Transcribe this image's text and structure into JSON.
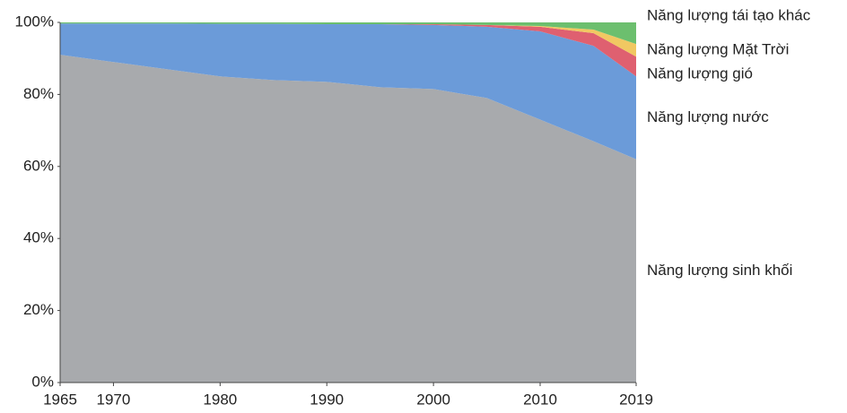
{
  "chart_data": {
    "type": "stacked_area",
    "x": [
      1965,
      1970,
      1975,
      1980,
      1985,
      1990,
      1995,
      2000,
      2005,
      2010,
      2015,
      2019
    ],
    "series": [
      {
        "name": "Năng lượng sinh khối",
        "color": "#a8aaad",
        "values": [
          91,
          89,
          87,
          85,
          84,
          83.5,
          82,
          81.5,
          79,
          73,
          67,
          62
        ]
      },
      {
        "name": "Năng lượng nước",
        "color": "#6b9bd9",
        "values": [
          8.7,
          10.7,
          12.7,
          14.6,
          15.6,
          16,
          17.5,
          17.8,
          19.8,
          24.5,
          26.5,
          23
        ]
      },
      {
        "name": "Năng lượng gió",
        "color": "#df6070",
        "values": [
          0,
          0,
          0,
          0,
          0,
          0,
          0,
          0.2,
          0.5,
          1.3,
          3.5,
          5.5
        ]
      },
      {
        "name": "Năng lượng Mặt Trời",
        "color": "#f1c862",
        "values": [
          0,
          0,
          0,
          0,
          0,
          0,
          0,
          0,
          0,
          0.2,
          1,
          3.5
        ]
      },
      {
        "name": "Năng lượng tái tạo khác",
        "color": "#6cbf6e",
        "values": [
          0.3,
          0.3,
          0.3,
          0.4,
          0.4,
          0.5,
          0.5,
          0.5,
          0.7,
          1,
          2,
          6
        ]
      }
    ],
    "xlim": [
      1965,
      2019
    ],
    "xticks": [
      1965,
      1970,
      1980,
      1990,
      2000,
      2010,
      2019
    ],
    "ylim": [
      0,
      100
    ],
    "yticks": [
      {
        "value": 0,
        "label": "0%"
      },
      {
        "value": 20,
        "label": "20%"
      },
      {
        "value": 40,
        "label": "40%"
      },
      {
        "value": 60,
        "label": "60%"
      },
      {
        "value": 80,
        "label": "80%"
      },
      {
        "value": 100,
        "label": "100%"
      }
    ]
  }
}
